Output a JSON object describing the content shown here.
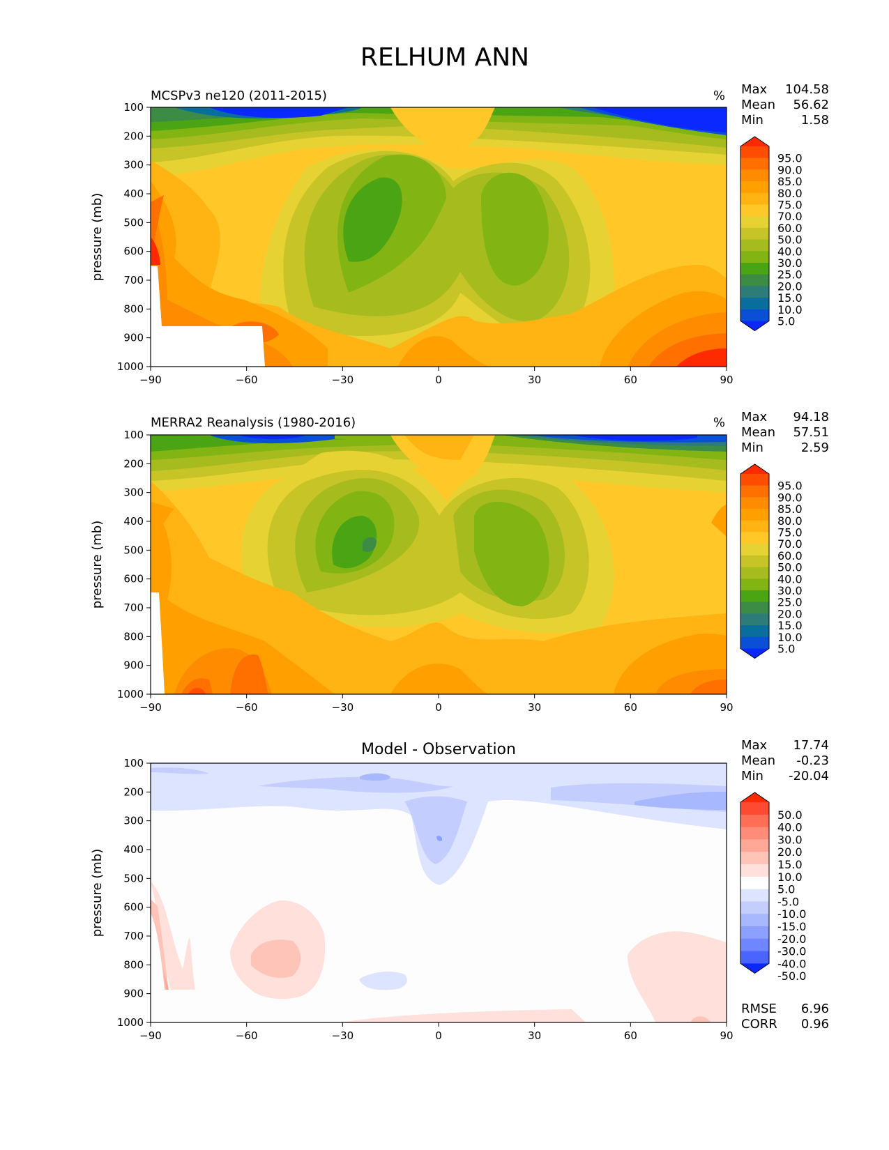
{
  "figure": {
    "title": "RELHUM ANN"
  },
  "chart_data": [
    {
      "type": "heatmap",
      "panel_title": "MCSPv3 ne120 (2011-2015)",
      "units": "%",
      "ylabel": "pressure (mb)",
      "xticks": [
        "−90",
        "−60",
        "−30",
        "0",
        "30",
        "60",
        "90"
      ],
      "yticks": [
        "100",
        "200",
        "300",
        "400",
        "500",
        "600",
        "700",
        "800",
        "900",
        "1000"
      ],
      "xlim": [
        -90,
        90
      ],
      "ylim": [
        1000,
        100
      ],
      "stats": [
        {
          "label": "Max",
          "value": "104.58"
        },
        {
          "label": "Mean",
          "value": "56.62"
        },
        {
          "label": "Min",
          "value": "1.58"
        }
      ],
      "colorbar": {
        "levels": [
          "95.0",
          "90.0",
          "85.0",
          "80.0",
          "75.0",
          "70.0",
          "60.0",
          "50.0",
          "40.0",
          "30.0",
          "25.0",
          "20.0",
          "15.0",
          "10.0",
          "5.0"
        ],
        "colors": [
          "#ff2a00",
          "#ff4d00",
          "#ff7000",
          "#ff8c00",
          "#ffa000",
          "#ffb414",
          "#ffc828",
          "#e6d232",
          "#c6c426",
          "#a6bc1e",
          "#82b414",
          "#4ba414",
          "#3c8c46",
          "#2e7c78",
          "#0a6e9c",
          "#0a50d6",
          "#0a28ff"
        ]
      }
    },
    {
      "type": "heatmap",
      "panel_title": "MERRA2 Reanalysis (1980-2016)",
      "units": "%",
      "ylabel": "pressure (mb)",
      "xticks": [
        "−90",
        "−60",
        "−30",
        "0",
        "30",
        "60",
        "90"
      ],
      "yticks": [
        "100",
        "200",
        "300",
        "400",
        "500",
        "600",
        "700",
        "800",
        "900",
        "1000"
      ],
      "xlim": [
        -90,
        90
      ],
      "ylim": [
        1000,
        100
      ],
      "stats": [
        {
          "label": "Max",
          "value": "94.18"
        },
        {
          "label": "Mean",
          "value": "57.51"
        },
        {
          "label": "Min",
          "value": "2.59"
        }
      ],
      "colorbar": {
        "levels": [
          "95.0",
          "90.0",
          "85.0",
          "80.0",
          "75.0",
          "70.0",
          "60.0",
          "50.0",
          "40.0",
          "30.0",
          "25.0",
          "20.0",
          "15.0",
          "10.0",
          "5.0"
        ],
        "colors": [
          "#ff2a00",
          "#ff4d00",
          "#ff7000",
          "#ff8c00",
          "#ffa000",
          "#ffb414",
          "#ffc828",
          "#e6d232",
          "#c6c426",
          "#a6bc1e",
          "#82b414",
          "#4ba414",
          "#3c8c46",
          "#2e7c78",
          "#0a6e9c",
          "#0a50d6",
          "#0a28ff"
        ]
      }
    },
    {
      "type": "heatmap",
      "panel_title": "Model - Observation",
      "ylabel": "pressure (mb)",
      "xticks": [
        "−90",
        "−60",
        "−30",
        "0",
        "30",
        "60",
        "90"
      ],
      "yticks": [
        "100",
        "200",
        "300",
        "400",
        "500",
        "600",
        "700",
        "800",
        "900",
        "1000"
      ],
      "xlim": [
        -90,
        90
      ],
      "ylim": [
        1000,
        100
      ],
      "stats": [
        {
          "label": "Max",
          "value": "17.74"
        },
        {
          "label": "Mean",
          "value": "-0.23"
        },
        {
          "label": "Min",
          "value": "-20.04"
        }
      ],
      "bottom_stats": [
        {
          "label": "RMSE",
          "value": "6.96"
        },
        {
          "label": "CORR",
          "value": "0.96"
        }
      ],
      "colorbar": {
        "levels": [
          "50.0",
          "40.0",
          "30.0",
          "20.0",
          "15.0",
          "10.0",
          "5.0",
          "-5.0",
          "-10.0",
          "-15.0",
          "-20.0",
          "-30.0",
          "-40.0",
          "-50.0"
        ],
        "colors": [
          "#ff2a00",
          "#ff4a32",
          "#ff6e55",
          "#ff8c78",
          "#ffa898",
          "#ffc4b8",
          "#ffe0da",
          "#ffffff",
          "#dde4ff",
          "#c3ceff",
          "#a8b8ff",
          "#8ca0ff",
          "#6e86ff",
          "#4a64ff",
          "#0a28ff"
        ]
      }
    }
  ]
}
